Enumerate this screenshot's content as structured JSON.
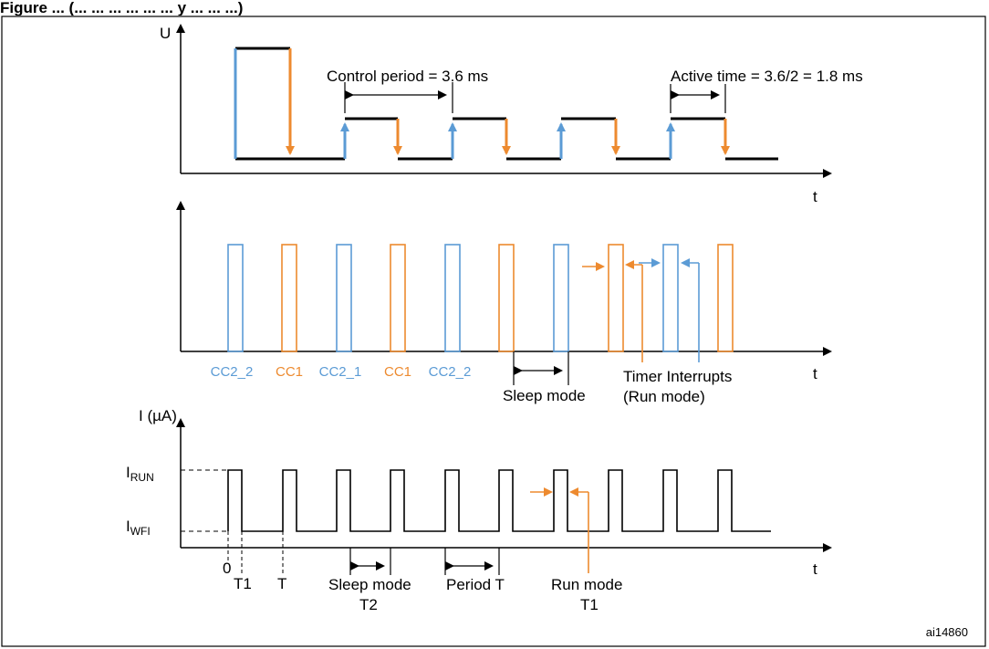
{
  "figure_title": "Figure ... (... ... ... ... ... ... y ... ... ...)",
  "colors": {
    "blue": "#5b9bd5",
    "orange": "#ed8a2f",
    "black": "#000000"
  },
  "panel_voltage": {
    "y_axis_label": "U",
    "x_axis_label": "t",
    "annotation_control_period": "Control period = 3.6 ms",
    "annotation_active_time": "Active time = 3.6/2 = 1.8 ms"
  },
  "panel_compare": {
    "x_axis_label": "t",
    "pulse_labels": [
      "CC2_2",
      "CC1",
      "CC2_1",
      "CC1",
      "CC2_2"
    ],
    "label_sleep_mode": "Sleep mode",
    "label_timer_interrupts": "Timer Interrupts",
    "label_run_mode": "(Run mode)"
  },
  "panel_current": {
    "y_axis_label": "I (µA)",
    "level_run": {
      "main": "I",
      "sub": "RUN"
    },
    "level_wfi": {
      "main": "I",
      "sub": "WFI"
    },
    "x_axis_label": "t",
    "tick_zero": "0",
    "tick_t1": "T1",
    "tick_t": "T",
    "label_sleep_mode": "Sleep mode",
    "label_t2": "T2",
    "label_period": "Period T",
    "label_run_mode": "Run mode",
    "label_run_t1": "T1"
  },
  "figure_id": "ai14860"
}
